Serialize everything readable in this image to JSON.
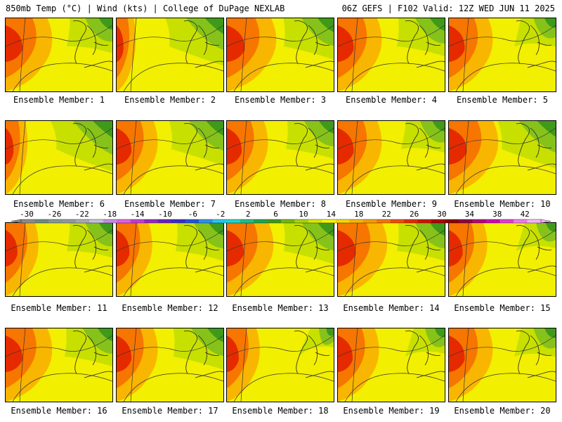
{
  "header": {
    "left": "850mb Temp (°C) | Wind (kts) | College of DuPage NEXLAB",
    "right": "06Z GEFS | F102 Valid: 12Z WED JUN 11 2025"
  },
  "members": [
    {
      "label": "Ensemble Member: 1",
      "warm": 0.85,
      "green": 0.55
    },
    {
      "label": "Ensemble Member: 2",
      "warm": 0.35,
      "green": 0.75
    },
    {
      "label": "Ensemble Member: 3",
      "warm": 0.9,
      "green": 0.65
    },
    {
      "label": "Ensemble Member: 4",
      "warm": 0.8,
      "green": 0.6
    },
    {
      "label": "Ensemble Member: 5",
      "warm": 0.8,
      "green": 0.45
    },
    {
      "label": "Ensemble Member: 6",
      "warm": 0.4,
      "green": 0.8
    },
    {
      "label": "Ensemble Member: 7",
      "warm": 0.75,
      "green": 0.7
    },
    {
      "label": "Ensemble Member: 8",
      "warm": 0.75,
      "green": 0.6
    },
    {
      "label": "Ensemble Member: 9",
      "warm": 0.8,
      "green": 0.5
    },
    {
      "label": "Ensemble Member: 10",
      "warm": 0.9,
      "green": 0.75
    },
    {
      "label": "Ensemble Member: 11",
      "warm": 0.6,
      "green": 0.55
    },
    {
      "label": "Ensemble Member: 12",
      "warm": 0.65,
      "green": 0.6
    },
    {
      "label": "Ensemble Member: 13",
      "warm": 0.85,
      "green": 0.65
    },
    {
      "label": "Ensemble Member: 14",
      "warm": 0.9,
      "green": 0.6
    },
    {
      "label": "Ensemble Member: 15",
      "warm": 0.7,
      "green": 0.4
    },
    {
      "label": "Ensemble Member: 16",
      "warm": 0.85,
      "green": 0.6
    },
    {
      "label": "Ensemble Member: 17",
      "warm": 0.75,
      "green": 0.65
    },
    {
      "label": "Ensemble Member: 18",
      "warm": 0.6,
      "green": 0.3
    },
    {
      "label": "Ensemble Member: 19",
      "warm": 0.75,
      "green": 0.4
    },
    {
      "label": "Ensemble Member: 20",
      "warm": 0.8,
      "green": 0.45
    }
  ],
  "colorbar": {
    "labels": [
      "-30",
      "-26",
      "-22",
      "-18",
      "-14",
      "-10",
      "-6",
      "-2",
      "2",
      "6",
      "10",
      "14",
      "18",
      "22",
      "26",
      "30",
      "34",
      "38",
      "42"
    ],
    "colors": [
      "#8c8c8c",
      "#6e8a84",
      "#7f9a97",
      "#909aa3",
      "#a9a9b6",
      "#c7c0dc",
      "#c78ee0",
      "#e260e6",
      "#c63ad8",
      "#9a25c9",
      "#6a1fc4",
      "#3a2ccf",
      "#1f55e0",
      "#2b92ee",
      "#25c9f5",
      "#1cd8d0",
      "#1ec08f",
      "#19a74f",
      "#3f9a19",
      "#74b80f",
      "#a8d40c",
      "#d7e80a",
      "#f7f600",
      "#f8d800",
      "#f9b600",
      "#f99b00",
      "#f67600",
      "#f04e00",
      "#e52a00",
      "#d41300",
      "#b50000",
      "#8c0000",
      "#920040",
      "#b8007f",
      "#d200b6",
      "#e63ad8",
      "#f07af0",
      "#f7b2f7"
    ]
  }
}
